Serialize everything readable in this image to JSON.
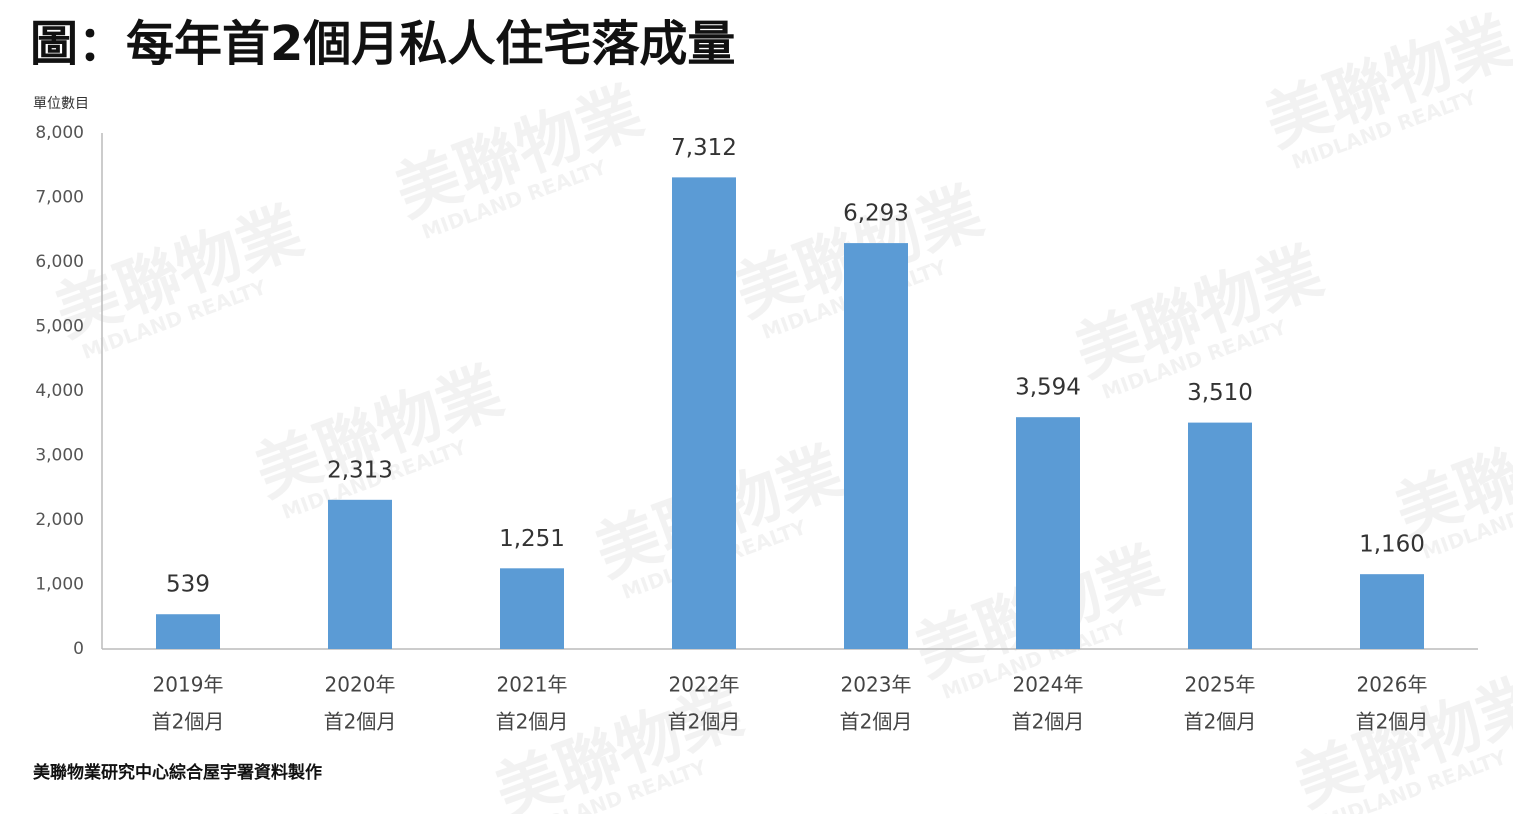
{
  "chart_data": {
    "type": "bar",
    "title": "圖：每年首2個月私人住宅落成量",
    "y_axis_label": "單位數目",
    "source": "美聯物業研究中心綜合屋宇署資料製作",
    "watermark": [
      "美聯物業",
      "MIDLAND REALTY"
    ],
    "categories": [
      [
        "2019年",
        "首2個月"
      ],
      [
        "2020年",
        "首2個月"
      ],
      [
        "2021年",
        "首2個月"
      ],
      [
        "2022年",
        "首2個月"
      ],
      [
        "2023年",
        "首2個月"
      ],
      [
        "2024年",
        "首2個月"
      ],
      [
        "2025年",
        "首2個月"
      ],
      [
        "2026年",
        "首2個月"
      ]
    ],
    "values": [
      539,
      2313,
      1251,
      7312,
      6293,
      3594,
      3510,
      1160
    ],
    "value_labels": [
      "539",
      "2,313",
      "1,251",
      "7,312",
      "6,293",
      "3,594",
      "3,510",
      "1,160"
    ],
    "color": "#5b9bd5",
    "ylim": [
      0,
      8000
    ],
    "yticks": [
      0,
      {
        "value": 1000,
        "label": "1,000"
      },
      {
        "value": 2000,
        "label": "2,000"
      },
      {
        "value": 3000,
        "label": "3,000"
      },
      {
        "value": 4000,
        "label": "4,000"
      },
      {
        "value": 5000,
        "label": "5,000"
      },
      {
        "value": 6000,
        "label": "6,000"
      },
      {
        "value": 7000,
        "label": "7,000"
      },
      {
        "value": 8000,
        "label": "8,000"
      }
    ],
    "grid": false
  }
}
